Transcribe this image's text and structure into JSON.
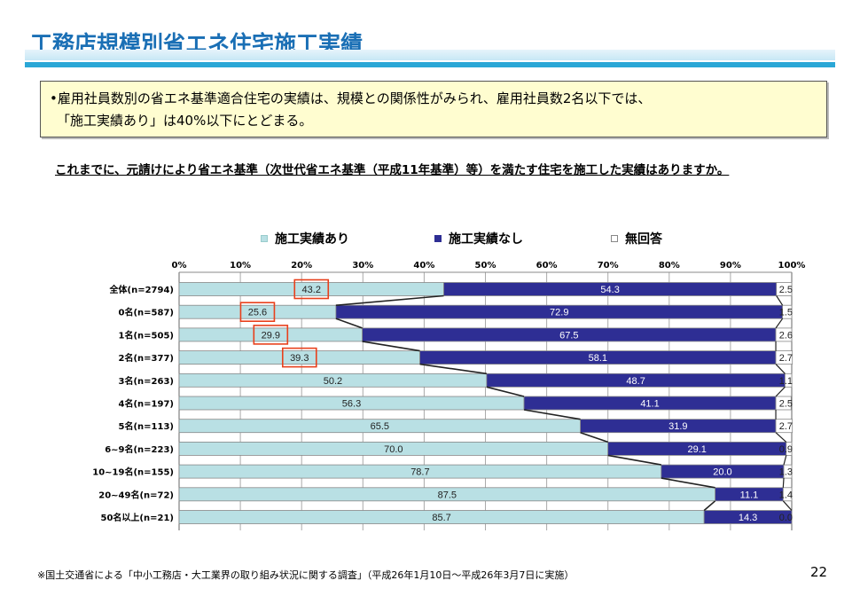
{
  "title": "工務店規模別省エネ住宅施工実績",
  "summary": {
    "line1": "•雇用社員数別の省エネ基準適合住宅の実績は、規模との関係性がみられ、雇用社員数2名以下では、",
    "line2": "「施工実績あり」は40%以下にとどまる。"
  },
  "question": "これまでに、元請けにより省エネ基準（次世代省エネ基準（平成11年基準）等）を満たす住宅を施工した実績はありますか。",
  "footer": "※国土交通省による「中小工務店・大工業界の取り組み状況に関する調査」（平成26年1月10日～平成26年3月7日に実施）",
  "page_number": "22",
  "colors": {
    "yes": "#b9e0e4",
    "no": "#2e2e94",
    "na": "#ffffff",
    "highlight": "#e8401c"
  },
  "chart_data": {
    "type": "bar",
    "orientation": "horizontal-stacked-100",
    "xlim": [
      0,
      100
    ],
    "ticks": [
      "0%",
      "10%",
      "20%",
      "30%",
      "40%",
      "50%",
      "60%",
      "70%",
      "80%",
      "90%",
      "100%"
    ],
    "legend_position": "top",
    "categories": [
      "全体(n=2794)",
      "0名(n=587)",
      "1名(n=505)",
      "2名(n=377)",
      "3名(n=263)",
      "4名(n=197)",
      "5名(n=113)",
      "6~9名(n=223)",
      "10~19名(n=155)",
      "20~49名(n=72)",
      "50名以上(n=21)"
    ],
    "series": [
      {
        "name": "施工実績あり",
        "values": [
          43.2,
          25.6,
          29.9,
          39.3,
          50.2,
          56.3,
          65.5,
          70.0,
          78.7,
          87.5,
          85.7
        ]
      },
      {
        "name": "施工実績なし",
        "values": [
          54.3,
          72.9,
          67.5,
          58.1,
          48.7,
          41.1,
          31.9,
          29.1,
          20.0,
          11.1,
          14.3
        ]
      },
      {
        "name": "無回答",
        "values": [
          2.5,
          1.5,
          2.6,
          2.7,
          1.1,
          2.5,
          2.7,
          0.9,
          1.3,
          1.4,
          0.0
        ]
      }
    ],
    "highlighted_rows": [
      0,
      1,
      2,
      3
    ]
  }
}
